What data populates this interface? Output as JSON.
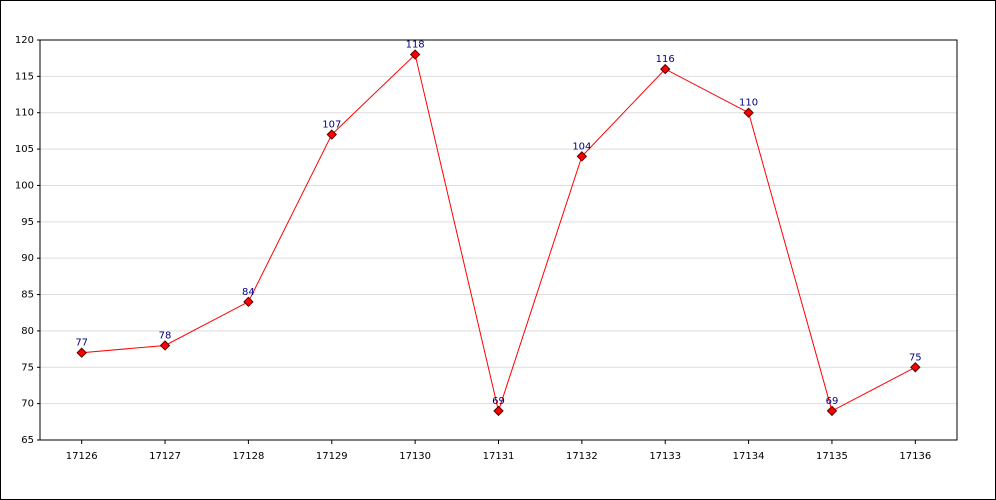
{
  "chart_data": {
    "type": "line",
    "categories": [
      "17126",
      "17127",
      "17128",
      "17129",
      "17130",
      "17131",
      "17132",
      "17133",
      "17134",
      "17135",
      "17136"
    ],
    "series": [
      {
        "color": "#ff0000",
        "values": [
          77,
          78,
          84,
          107,
          118,
          69,
          104,
          116,
          110,
          69,
          75
        ]
      }
    ],
    "ylim": [
      65,
      120
    ],
    "yticks": [
      65,
      70,
      75,
      80,
      85,
      90,
      95,
      100,
      105,
      110,
      115,
      120
    ],
    "grid": true
  }
}
